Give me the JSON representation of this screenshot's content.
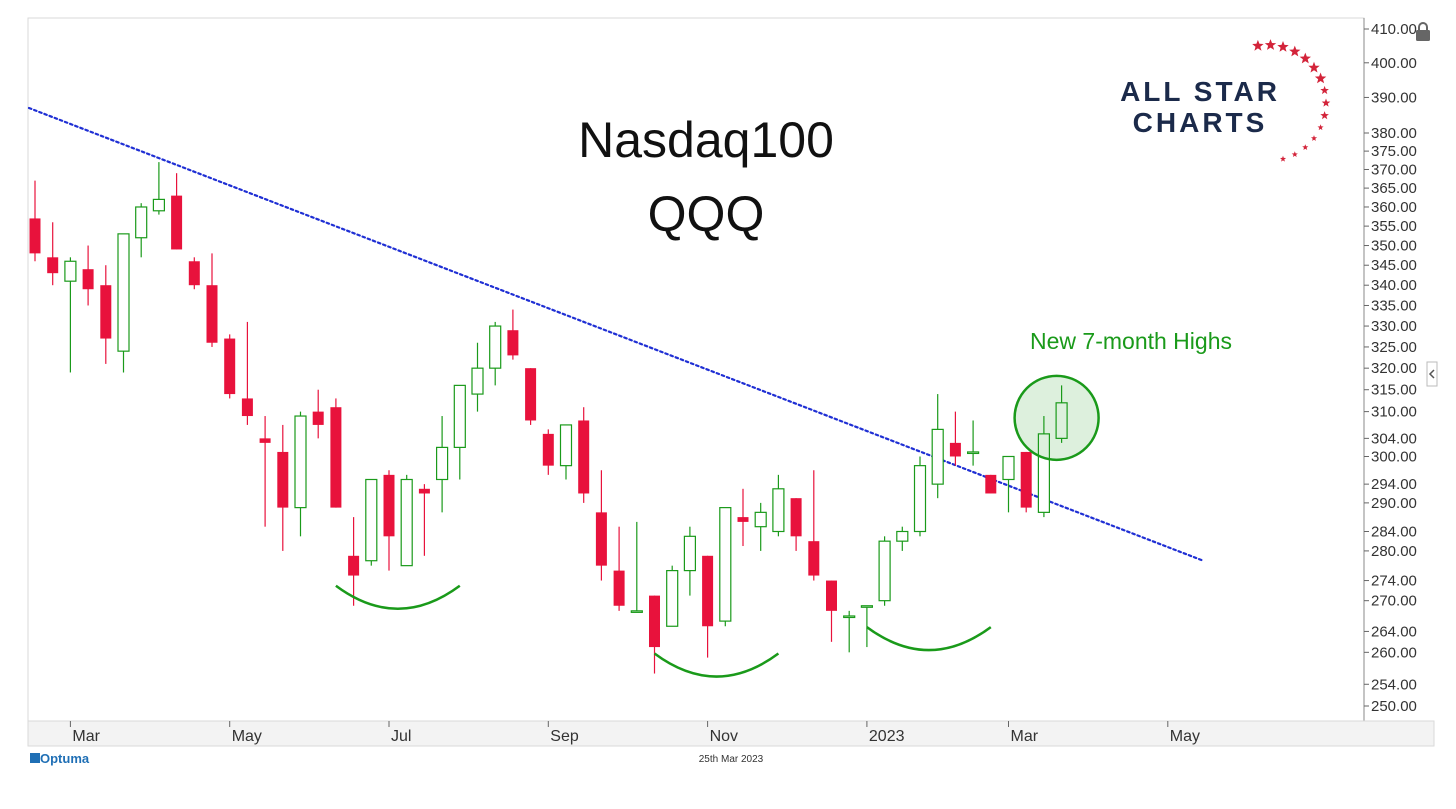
{
  "chart_data": {
    "type": "candlestick",
    "title": "Nasdaq100",
    "subtitle": "QQQ",
    "annotation": "New 7-month Highs",
    "footer_date": "25th Mar 2023",
    "y_ticks": [
      410,
      400,
      390,
      380,
      375,
      370,
      365,
      360,
      355,
      350,
      345,
      340,
      335,
      330,
      325,
      320,
      315,
      310,
      304,
      300,
      294,
      290,
      284,
      280,
      274,
      270,
      264,
      260,
      254,
      250
    ],
    "y_tick_labels": [
      "410.00",
      "400.00",
      "390.00",
      "380.00",
      "375.00",
      "370.00",
      "365.00",
      "360.00",
      "355.00",
      "350.00",
      "345.00",
      "340.00",
      "335.00",
      "330.00",
      "325.00",
      "320.00",
      "315.00",
      "310.00",
      "304.00",
      "300.00",
      "294.00",
      "290.00",
      "284.00",
      "280.00",
      "274.00",
      "270.00",
      "264.00",
      "260.00",
      "254.00",
      "250.00"
    ],
    "y_scale": "log",
    "x_labels": [
      "Mar",
      "May",
      "Jul",
      "Sep",
      "Nov",
      "2023",
      "Mar",
      "May"
    ],
    "x_label_week_index": [
      2,
      11,
      20,
      29,
      38,
      47,
      55,
      64
    ],
    "trendline": {
      "start": {
        "week": 0,
        "price": 387
      },
      "end": {
        "week": 66,
        "price": 278
      }
    },
    "colors": {
      "up": "#1a9a1a",
      "down": "#e8123c",
      "trendline": "#1f2fd4",
      "annotation": "#1a9a1a"
    },
    "candles": [
      {
        "o": 357,
        "h": 367,
        "l": 346,
        "c": 348
      },
      {
        "o": 347,
        "h": 356,
        "l": 340,
        "c": 343
      },
      {
        "o": 341,
        "h": 347,
        "l": 319,
        "c": 346
      },
      {
        "o": 344,
        "h": 350,
        "l": 335,
        "c": 339
      },
      {
        "o": 340,
        "h": 345,
        "l": 321,
        "c": 327
      },
      {
        "o": 324,
        "h": 353,
        "l": 319,
        "c": 353
      },
      {
        "o": 352,
        "h": 361,
        "l": 347,
        "c": 360
      },
      {
        "o": 359,
        "h": 372,
        "l": 358,
        "c": 362
      },
      {
        "o": 363,
        "h": 369,
        "l": 349,
        "c": 349
      },
      {
        "o": 346,
        "h": 347,
        "l": 339,
        "c": 340
      },
      {
        "o": 340,
        "h": 348,
        "l": 325,
        "c": 326
      },
      {
        "o": 327,
        "h": 328,
        "l": 313,
        "c": 314
      },
      {
        "o": 313,
        "h": 331,
        "l": 307,
        "c": 309
      },
      {
        "o": 304,
        "h": 309,
        "l": 285,
        "c": 303
      },
      {
        "o": 301,
        "h": 307,
        "l": 280,
        "c": 289
      },
      {
        "o": 289,
        "h": 310,
        "l": 283,
        "c": 309
      },
      {
        "o": 310,
        "h": 315,
        "l": 304,
        "c": 307
      },
      {
        "o": 311,
        "h": 313,
        "l": 289,
        "c": 289
      },
      {
        "o": 279,
        "h": 287,
        "l": 269,
        "c": 275
      },
      {
        "o": 278,
        "h": 295,
        "l": 277,
        "c": 295
      },
      {
        "o": 296,
        "h": 297,
        "l": 276,
        "c": 283
      },
      {
        "o": 277,
        "h": 296,
        "l": 277,
        "c": 295
      },
      {
        "o": 293,
        "h": 294,
        "l": 279,
        "c": 292
      },
      {
        "o": 295,
        "h": 309,
        "l": 288,
        "c": 302
      },
      {
        "o": 302,
        "h": 316,
        "l": 295,
        "c": 316
      },
      {
        "o": 314,
        "h": 326,
        "l": 310,
        "c": 320
      },
      {
        "o": 320,
        "h": 331,
        "l": 316,
        "c": 330
      },
      {
        "o": 329,
        "h": 334,
        "l": 322,
        "c": 323
      },
      {
        "o": 320,
        "h": 320,
        "l": 307,
        "c": 308
      },
      {
        "o": 305,
        "h": 306,
        "l": 296,
        "c": 298
      },
      {
        "o": 298,
        "h": 307,
        "l": 295,
        "c": 307
      },
      {
        "o": 308,
        "h": 311,
        "l": 290,
        "c": 292
      },
      {
        "o": 288,
        "h": 297,
        "l": 274,
        "c": 277
      },
      {
        "o": 276,
        "h": 285,
        "l": 268,
        "c": 269
      },
      {
        "o": 268,
        "h": 286,
        "l": 268,
        "c": 268
      },
      {
        "o": 271,
        "h": 271,
        "l": 256,
        "c": 261
      },
      {
        "o": 265,
        "h": 277,
        "l": 265,
        "c": 276
      },
      {
        "o": 276,
        "h": 285,
        "l": 271,
        "c": 283
      },
      {
        "o": 279,
        "h": 279,
        "l": 259,
        "c": 265
      },
      {
        "o": 266,
        "h": 289,
        "l": 265,
        "c": 289
      },
      {
        "o": 287,
        "h": 293,
        "l": 281,
        "c": 286
      },
      {
        "o": 285,
        "h": 290,
        "l": 280,
        "c": 288
      },
      {
        "o": 284,
        "h": 296,
        "l": 283,
        "c": 293
      },
      {
        "o": 291,
        "h": 291,
        "l": 280,
        "c": 283
      },
      {
        "o": 282,
        "h": 297,
        "l": 274,
        "c": 275
      },
      {
        "o": 274,
        "h": 274,
        "l": 262,
        "c": 268
      },
      {
        "o": 267,
        "h": 268,
        "l": 260,
        "c": 267
      },
      {
        "o": 269,
        "h": 269,
        "l": 261,
        "c": 269
      },
      {
        "o": 270,
        "h": 283,
        "l": 269,
        "c": 282
      },
      {
        "o": 282,
        "h": 285,
        "l": 280,
        "c": 284
      },
      {
        "o": 284,
        "h": 300,
        "l": 283,
        "c": 298
      },
      {
        "o": 294,
        "h": 314,
        "l": 291,
        "c": 306
      },
      {
        "o": 303,
        "h": 310,
        "l": 298,
        "c": 300
      },
      {
        "o": 301,
        "h": 308,
        "l": 298,
        "c": 301
      },
      {
        "o": 296,
        "h": 296,
        "l": 292,
        "c": 292
      },
      {
        "o": 295,
        "h": 300,
        "l": 288,
        "c": 300
      },
      {
        "o": 301,
        "h": 301,
        "l": 288,
        "c": 289
      },
      {
        "o": 288,
        "h": 309,
        "l": 287,
        "c": 305
      },
      {
        "o": 304,
        "h": 316,
        "l": 303,
        "c": 312
      }
    ],
    "highlight_candle_index": 58,
    "support_arcs": [
      {
        "from_week": 17,
        "to_week": 24
      },
      {
        "from_week": 35,
        "to_week": 42
      },
      {
        "from_week": 47,
        "to_week": 54
      }
    ]
  },
  "logo": {
    "line1": "ALL STAR",
    "line2": "CHARTS"
  },
  "brand_footer": "Optuma",
  "icons": {
    "lock": "lock-icon",
    "collapse": "chevron-left-icon"
  }
}
